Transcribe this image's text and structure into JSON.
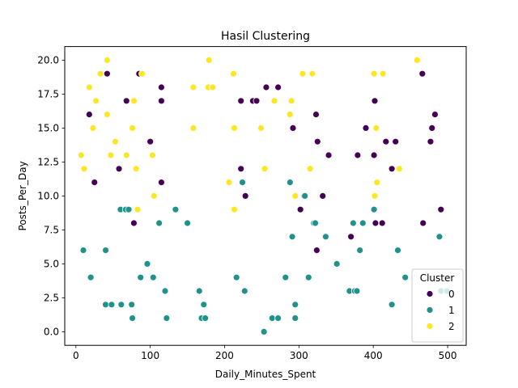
{
  "chart_data": {
    "type": "scatter",
    "title": "Hasil Clustering",
    "xlabel": "Daily_Minutes_Spent",
    "ylabel": "Posts_Per_Day",
    "xlim": [
      -15,
      525
    ],
    "ylim": [
      -1,
      21
    ],
    "xticks": [
      0,
      100,
      200,
      300,
      400,
      500
    ],
    "yticks": [
      0.0,
      2.5,
      5.0,
      7.5,
      10.0,
      12.5,
      15.0,
      17.5,
      20.0
    ],
    "ytick_labels": [
      "0.0",
      "2.5",
      "5.0",
      "7.5",
      "10.0",
      "12.5",
      "15.0",
      "17.5",
      "20.0"
    ],
    "grid": false,
    "legend": {
      "title": "Cluster",
      "placement": "lower-right",
      "entries": [
        "0",
        "1",
        "2"
      ]
    },
    "series": [
      {
        "name": "0",
        "color": "#440154",
        "points": [
          [
            42,
            19
          ],
          [
            85,
            19
          ],
          [
            18,
            16
          ],
          [
            25,
            11
          ],
          [
            58,
            12
          ],
          [
            68,
            17
          ],
          [
            78,
            8
          ],
          [
            100,
            14
          ],
          [
            115,
            18
          ],
          [
            115,
            17
          ],
          [
            115,
            11
          ],
          [
            222,
            17
          ],
          [
            222,
            12
          ],
          [
            228,
            10
          ],
          [
            238,
            17
          ],
          [
            243,
            17
          ],
          [
            256,
            18
          ],
          [
            272,
            18
          ],
          [
            292,
            15
          ],
          [
            302,
            9
          ],
          [
            307,
            10
          ],
          [
            323,
            16
          ],
          [
            325,
            14
          ],
          [
            324,
            6
          ],
          [
            332,
            10
          ],
          [
            340,
            13
          ],
          [
            370,
            7
          ],
          [
            379,
            13
          ],
          [
            390,
            15
          ],
          [
            401,
            13
          ],
          [
            402,
            17
          ],
          [
            403,
            8
          ],
          [
            412,
            8
          ],
          [
            417,
            14
          ],
          [
            425,
            12
          ],
          [
            430,
            14
          ],
          [
            466,
            19
          ],
          [
            467,
            8
          ],
          [
            477,
            14
          ],
          [
            479,
            15
          ],
          [
            483,
            16
          ],
          [
            491,
            9
          ]
        ]
      },
      {
        "name": "1",
        "color": "#21918c",
        "points": [
          [
            10,
            6
          ],
          [
            20,
            4
          ],
          [
            40,
            6
          ],
          [
            40,
            2
          ],
          [
            48,
            2
          ],
          [
            60,
            9
          ],
          [
            61,
            2
          ],
          [
            67,
            9
          ],
          [
            71,
            9
          ],
          [
            75,
            2
          ],
          [
            76,
            1
          ],
          [
            87,
            4
          ],
          [
            96,
            5
          ],
          [
            104,
            4
          ],
          [
            112,
            8
          ],
          [
            120,
            3
          ],
          [
            122,
            1
          ],
          [
            134,
            9
          ],
          [
            150,
            8
          ],
          [
            166,
            3
          ],
          [
            169,
            1
          ],
          [
            172,
            2
          ],
          [
            174,
            1
          ],
          [
            216,
            4
          ],
          [
            224,
            11
          ],
          [
            227,
            3
          ],
          [
            253,
            0
          ],
          [
            264,
            1
          ],
          [
            272,
            1
          ],
          [
            282,
            4
          ],
          [
            288,
            11
          ],
          [
            291,
            7
          ],
          [
            295,
            2
          ],
          [
            295,
            1
          ],
          [
            308,
            10
          ],
          [
            313,
            4
          ],
          [
            320,
            8
          ],
          [
            322,
            8
          ],
          [
            336,
            7
          ],
          [
            351,
            5
          ],
          [
            368,
            3
          ],
          [
            373,
            8
          ],
          [
            375,
            3
          ],
          [
            378,
            3
          ],
          [
            382,
            6
          ],
          [
            386,
            8
          ],
          [
            401,
            9
          ],
          [
            425,
            2
          ],
          [
            433,
            6
          ],
          [
            443,
            4
          ],
          [
            489,
            7
          ],
          [
            491,
            3
          ],
          [
            499,
            3
          ]
        ]
      },
      {
        "name": "2",
        "color": "#fde725",
        "points": [
          [
            7,
            13
          ],
          [
            11,
            12
          ],
          [
            18,
            18
          ],
          [
            23,
            15
          ],
          [
            27,
            17
          ],
          [
            33,
            19
          ],
          [
            42,
            20
          ],
          [
            42,
            16
          ],
          [
            47,
            13
          ],
          [
            53,
            14
          ],
          [
            68,
            13
          ],
          [
            76,
            15
          ],
          [
            78,
            17
          ],
          [
            81,
            12
          ],
          [
            83,
            9
          ],
          [
            89,
            19
          ],
          [
            103,
            13
          ],
          [
            105,
            10
          ],
          [
            158,
            18
          ],
          [
            158,
            15
          ],
          [
            178,
            18
          ],
          [
            179,
            20
          ],
          [
            184,
            18
          ],
          [
            206,
            11
          ],
          [
            212,
            19
          ],
          [
            213,
            15
          ],
          [
            213,
            9
          ],
          [
            249,
            15
          ],
          [
            254,
            12
          ],
          [
            267,
            17
          ],
          [
            288,
            16
          ],
          [
            290,
            17
          ],
          [
            295,
            10
          ],
          [
            305,
            19
          ],
          [
            315,
            12
          ],
          [
            318,
            19
          ],
          [
            401,
            19
          ],
          [
            402,
            10
          ],
          [
            404,
            15
          ],
          [
            405,
            11
          ],
          [
            413,
            19
          ],
          [
            435,
            12
          ],
          [
            459,
            20
          ]
        ]
      }
    ]
  }
}
